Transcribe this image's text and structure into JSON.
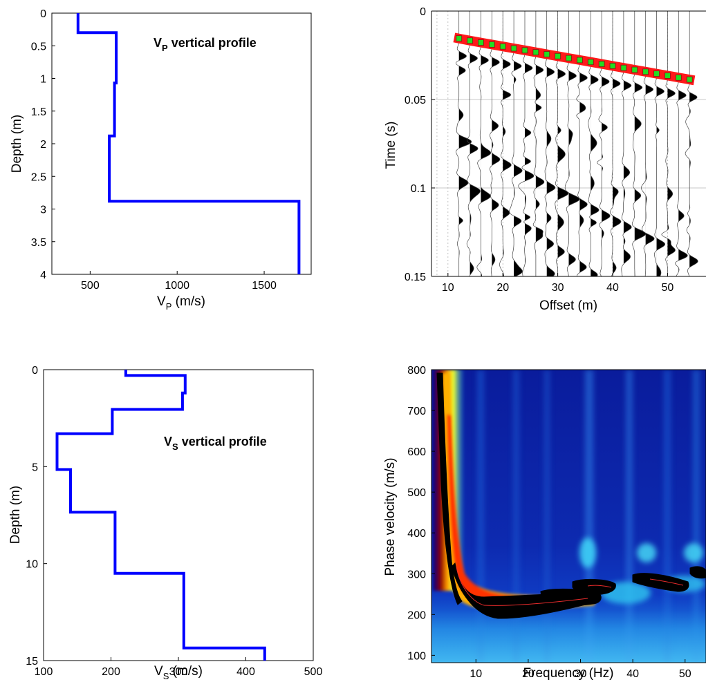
{
  "chart_data": [
    {
      "id": "vp",
      "type": "line",
      "xlabel": "V",
      "xlabel_sub": "P",
      "xlabel_unit": " (m/s)",
      "ylabel": "Depth (m)",
      "annotation": "V",
      "annotation_sub": "P",
      "annotation_rest": " vertical profile",
      "xlim": [
        280,
        1770
      ],
      "ylim": [
        0,
        4
      ],
      "xticks": [
        500,
        1000,
        1500
      ],
      "yticks": [
        0,
        0.5,
        1,
        1.5,
        2,
        2.5,
        3,
        3.5,
        4
      ],
      "ytick_labels": [
        "0",
        "0.5",
        "1",
        "1.5",
        "2",
        "2.5",
        "3",
        "3.5",
        "4"
      ],
      "y_reversed": true,
      "line_color": "#0000ff",
      "steps": [
        [
          430,
          0
        ],
        [
          430,
          0.3
        ],
        [
          650,
          0.3
        ],
        [
          650,
          1.07
        ],
        [
          640,
          1.07
        ],
        [
          640,
          1.88
        ],
        [
          610,
          1.88
        ],
        [
          610,
          2.88
        ],
        [
          1700,
          2.88
        ],
        [
          1700,
          4
        ]
      ]
    },
    {
      "id": "shot",
      "type": "scatter",
      "xlabel": "Offset (m)",
      "ylabel": "Time (s)",
      "xlim": [
        7,
        57
      ],
      "ylim": [
        0,
        0.15
      ],
      "xticks": [
        10,
        20,
        30,
        40,
        50
      ],
      "yticks": [
        0,
        0.05,
        0.1,
        0.15
      ],
      "ytick_labels": [
        "0",
        "0.05",
        "0.1",
        "0.15"
      ],
      "y_reversed": true,
      "grid_color": "#b4b4b4",
      "offsets": [
        12,
        14,
        16,
        18,
        20,
        22,
        24,
        26,
        28,
        30,
        32,
        34,
        36,
        38,
        40,
        42,
        44,
        46,
        48,
        50,
        52,
        54
      ],
      "first_arrival_picks": [
        0.0155,
        0.0167,
        0.0178,
        0.0189,
        0.02,
        0.0211,
        0.0222,
        0.0233,
        0.0244,
        0.0255,
        0.0266,
        0.0277,
        0.0288,
        0.0299,
        0.031,
        0.0321,
        0.0332,
        0.0343,
        0.0354,
        0.0365,
        0.0376,
        0.0387
      ],
      "pick_fill": "#22dd22",
      "pick_edge": "#ff1a1a"
    },
    {
      "id": "vs",
      "type": "line",
      "xlabel": "V",
      "xlabel_sub": "S",
      "xlabel_unit": " (m/s)",
      "ylabel": "Depth (m)",
      "annotation": "V",
      "annotation_sub": "S",
      "annotation_rest": " vertical profile",
      "xlim": [
        100,
        500
      ],
      "ylim": [
        0,
        15
      ],
      "xticks": [
        100,
        200,
        300,
        400,
        500
      ],
      "yticks": [
        0,
        5,
        10,
        15
      ],
      "ytick_labels": [
        "0",
        "5",
        "10",
        "15"
      ],
      "y_reversed": true,
      "line_color": "#0000ff",
      "steps": [
        [
          222,
          0
        ],
        [
          222,
          0.3
        ],
        [
          310,
          0.3
        ],
        [
          310,
          1.2
        ],
        [
          306,
          1.2
        ],
        [
          306,
          2.05
        ],
        [
          202,
          2.05
        ],
        [
          202,
          3.3
        ],
        [
          120,
          3.3
        ],
        [
          120,
          5.15
        ],
        [
          140,
          5.15
        ],
        [
          140,
          7.35
        ],
        [
          206,
          7.35
        ],
        [
          206,
          10.5
        ],
        [
          308,
          10.5
        ],
        [
          308,
          14.35
        ],
        [
          428,
          14.35
        ],
        [
          428,
          15
        ]
      ]
    },
    {
      "id": "dispersion",
      "type": "heatmap",
      "xlabel": "Frequency (Hz)",
      "ylabel": "Phase velocity (m/s)",
      "xlim": [
        1.5,
        54
      ],
      "ylim": [
        82,
        800
      ],
      "xticks": [
        10,
        20,
        30,
        40,
        50
      ],
      "yticks": [
        100,
        200,
        300,
        400,
        500,
        600,
        700,
        800
      ],
      "colormap": "jet",
      "fundamental_mode": [
        [
          3,
          850
        ],
        [
          4,
          400
        ],
        [
          5,
          300
        ],
        [
          6,
          250
        ],
        [
          7,
          225
        ],
        [
          10,
          210
        ],
        [
          20,
          205
        ],
        [
          30,
          200
        ]
      ],
      "higher_modes": [
        [
          32,
          230
        ],
        [
          38,
          222
        ],
        [
          41,
          250
        ],
        [
          50,
          235
        ],
        [
          52,
          268
        ],
        [
          54,
          266
        ]
      ]
    }
  ]
}
